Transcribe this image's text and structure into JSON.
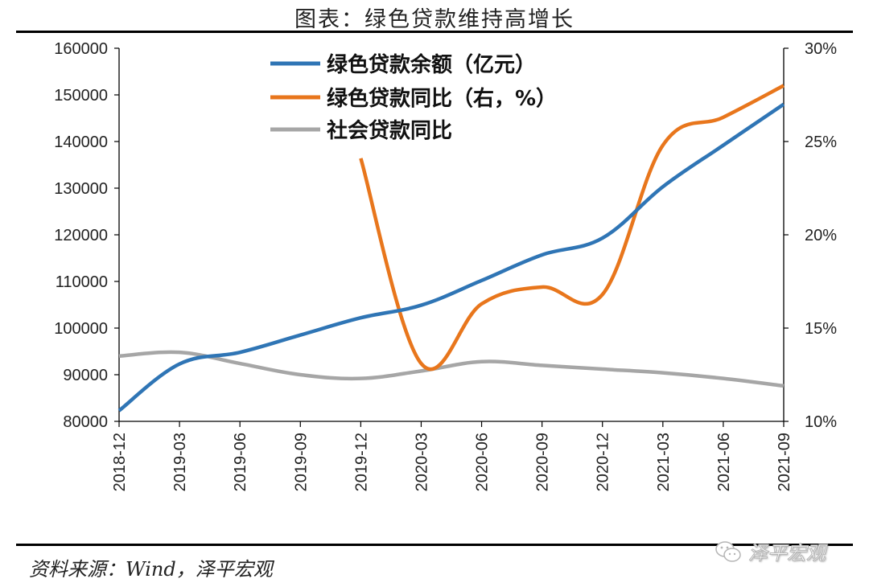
{
  "title": "图表：绿色贷款维持高增长",
  "source": "资料来源：Wind，泽平宏观",
  "watermark": {
    "text": "泽平宏观",
    "icon": "wechat-icon"
  },
  "chart_data": {
    "type": "line",
    "categories": [
      "2018-12",
      "2019-03",
      "2019-06",
      "2019-09",
      "2019-12",
      "2020-03",
      "2020-06",
      "2020-09",
      "2020-12",
      "2021-03",
      "2021-06",
      "2021-09"
    ],
    "y_left": {
      "ticks": [
        "80000",
        "90000",
        "100000",
        "110000",
        "120000",
        "130000",
        "140000",
        "150000",
        "160000"
      ],
      "lim": [
        80000,
        160000
      ]
    },
    "y_right": {
      "ticks": [
        "10%",
        "15%",
        "20%",
        "25%",
        "30%"
      ],
      "lim": [
        10,
        30
      ]
    },
    "grid": false,
    "legend_position": "top-center",
    "series": [
      {
        "name": "绿色贷款余额（亿元）",
        "axis": "left",
        "color": "#2f75b5",
        "values": [
          82300,
          92300,
          94800,
          98500,
          102200,
          104900,
          110200,
          115700,
          119300,
          130300,
          139200,
          148000
        ]
      },
      {
        "name": "绿色贷款同比（右，%）",
        "axis": "right",
        "color": "#e8761c",
        "values": [
          null,
          null,
          null,
          null,
          24.1,
          13.1,
          16.3,
          17.2,
          16.8,
          24.8,
          26.3,
          28.0
        ]
      },
      {
        "name": "社会贷款同比",
        "axis": "right",
        "color": "#a6a6a6",
        "values": [
          13.5,
          13.7,
          13.1,
          12.5,
          12.3,
          12.7,
          13.2,
          13.0,
          12.8,
          12.6,
          12.3,
          11.9
        ]
      }
    ]
  }
}
